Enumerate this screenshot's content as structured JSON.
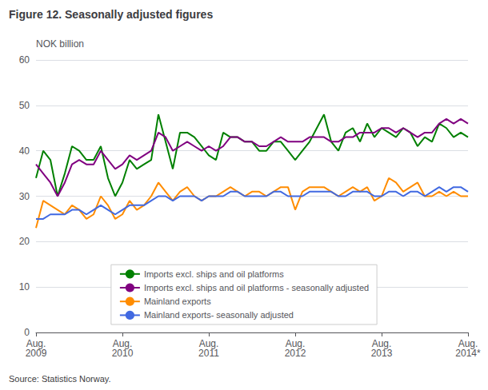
{
  "chart_data": {
    "type": "line",
    "title": "Figure 12. Seasonally adjusted figures",
    "ylabel": "NOK billion",
    "annotations": [
      "Source: Statistics Norway."
    ],
    "categories": [
      "Aug.\n2009",
      null,
      null,
      null,
      null,
      null,
      null,
      null,
      null,
      null,
      null,
      null,
      "Aug.\n2010",
      null,
      null,
      null,
      null,
      null,
      null,
      null,
      null,
      null,
      null,
      null,
      "Aug.\n2011",
      null,
      null,
      null,
      null,
      null,
      null,
      null,
      null,
      null,
      null,
      null,
      "Aug.\n2012",
      null,
      null,
      null,
      null,
      null,
      null,
      null,
      null,
      null,
      null,
      null,
      "Aug.\n2013",
      null,
      null,
      null,
      null,
      null,
      null,
      null,
      null,
      null,
      null,
      null,
      "Aug.\n2014*"
    ],
    "ylim": [
      0,
      60
    ],
    "yticks": [
      0,
      10,
      20,
      30,
      40,
      50,
      60
    ],
    "grid": true,
    "legend": "lower center",
    "series": [
      {
        "name": "Imports excl. ships and oil platforms",
        "color": "#008000",
        "values": [
          34,
          40,
          38,
          30,
          35,
          41,
          40,
          38,
          38,
          41,
          34,
          30,
          33,
          38,
          36,
          37,
          38,
          48,
          42,
          36,
          44,
          44,
          43,
          41,
          39,
          38,
          44,
          43,
          43,
          42,
          42,
          40,
          40,
          42,
          42,
          40,
          38,
          40,
          42,
          45,
          48,
          42,
          40,
          44,
          45,
          42,
          46,
          43,
          45,
          44,
          43,
          45,
          44,
          41,
          43,
          42,
          46,
          45,
          43,
          44,
          43
        ]
      },
      {
        "name": "Imports excl. ships and oil platforms - seasonally adjusted",
        "color": "#800080",
        "values": [
          37,
          35,
          33,
          30,
          33,
          37,
          38,
          37,
          37,
          40,
          38,
          36,
          37,
          39,
          38,
          39,
          40,
          44,
          43,
          40,
          41,
          42,
          41,
          40,
          41,
          40,
          41,
          43,
          43,
          42,
          42,
          41,
          41,
          42,
          43,
          42,
          42,
          42,
          43,
          43,
          43,
          42,
          42,
          43,
          43,
          44,
          44,
          44,
          45,
          45,
          44,
          45,
          44,
          43,
          44,
          44,
          46,
          47,
          46,
          47,
          46
        ]
      },
      {
        "name": "Mainland exports",
        "color": "#ff8c00",
        "values": [
          23,
          29,
          28,
          27,
          26,
          28,
          27,
          25,
          26,
          30,
          28,
          25,
          26,
          29,
          27,
          28,
          30,
          33,
          31,
          29,
          31,
          32,
          30,
          29,
          30,
          30,
          31,
          32,
          31,
          30,
          31,
          31,
          30,
          31,
          32,
          32,
          27,
          31,
          32,
          32,
          32,
          31,
          30,
          31,
          32,
          31,
          32,
          29,
          30,
          34,
          33,
          31,
          32,
          33,
          30,
          30,
          31,
          30,
          31,
          30,
          30
        ]
      },
      {
        "name": "Mainland exports- seasonally adjusted",
        "color": "#4169e1",
        "values": [
          25,
          25,
          26,
          26,
          26,
          27,
          27,
          26,
          27,
          28,
          27,
          26,
          27,
          28,
          28,
          28,
          29,
          30,
          30,
          29,
          30,
          30,
          30,
          29,
          30,
          30,
          30,
          31,
          31,
          30,
          30,
          30,
          30,
          31,
          31,
          30,
          30,
          30,
          31,
          31,
          31,
          31,
          30,
          30,
          31,
          31,
          31,
          30,
          30,
          31,
          31,
          30,
          31,
          31,
          30,
          31,
          32,
          31,
          32,
          32,
          31
        ]
      }
    ]
  }
}
